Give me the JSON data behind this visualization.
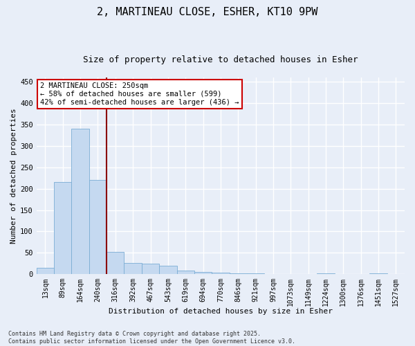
{
  "title_line1": "2, MARTINEAU CLOSE, ESHER, KT10 9PW",
  "title_line2": "Size of property relative to detached houses in Esher",
  "xlabel": "Distribution of detached houses by size in Esher",
  "ylabel": "Number of detached properties",
  "categories": [
    "13sqm",
    "89sqm",
    "164sqm",
    "240sqm",
    "316sqm",
    "392sqm",
    "467sqm",
    "543sqm",
    "619sqm",
    "694sqm",
    "770sqm",
    "846sqm",
    "921sqm",
    "997sqm",
    "1073sqm",
    "1149sqm",
    "1224sqm",
    "1300sqm",
    "1376sqm",
    "1451sqm",
    "1527sqm"
  ],
  "values": [
    15,
    215,
    340,
    220,
    52,
    27,
    25,
    20,
    8,
    5,
    3,
    2,
    2,
    1,
    1,
    0,
    2,
    0,
    0,
    2,
    0
  ],
  "bar_color": "#c5d9f0",
  "bar_edge_color": "#7aadd4",
  "vline_color": "#8b0000",
  "annotation_text": "2 MARTINEAU CLOSE: 250sqm\n← 58% of detached houses are smaller (599)\n42% of semi-detached houses are larger (436) →",
  "annotation_box_color": "#ffffff",
  "annotation_box_edge_color": "#cc0000",
  "ylim": [
    0,
    460
  ],
  "yticks": [
    0,
    50,
    100,
    150,
    200,
    250,
    300,
    350,
    400,
    450
  ],
  "footer_text": "Contains HM Land Registry data © Crown copyright and database right 2025.\nContains public sector information licensed under the Open Government Licence v3.0.",
  "bg_color": "#e8eef8",
  "grid_color": "#ffffff",
  "title_fontsize": 11,
  "subtitle_fontsize": 9,
  "tick_fontsize": 7,
  "ylabel_fontsize": 8,
  "xlabel_fontsize": 8,
  "footer_fontsize": 6,
  "annotation_fontsize": 7.5
}
